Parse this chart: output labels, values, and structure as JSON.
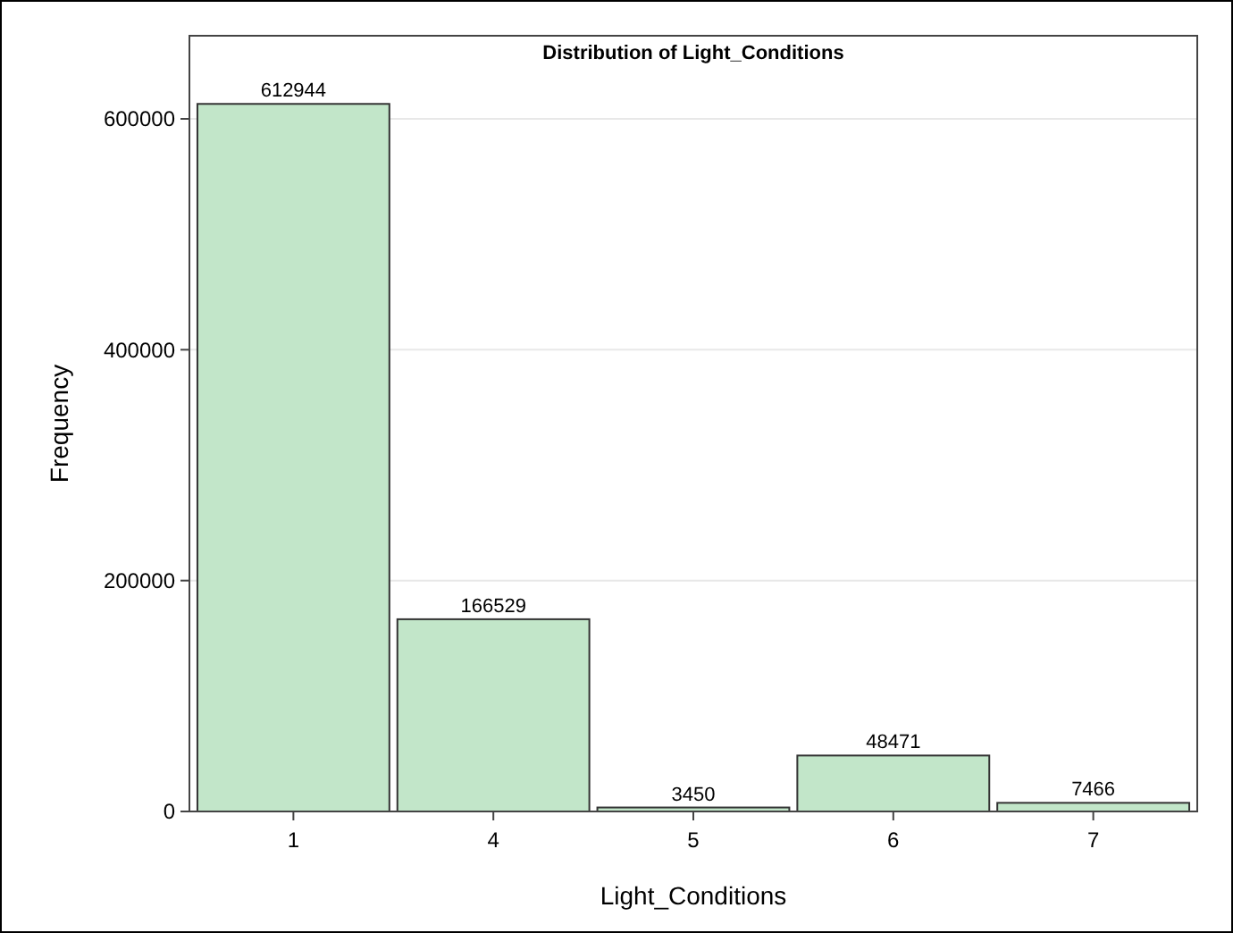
{
  "chart_data": {
    "type": "bar",
    "title": "Distribution of Light_Conditions",
    "xlabel": "Light_Conditions",
    "ylabel": "Frequency",
    "categories": [
      "1",
      "4",
      "5",
      "6",
      "7"
    ],
    "values": [
      612944,
      166529,
      3450,
      48471,
      7466
    ],
    "color": "#c2e6c9",
    "ylim": [
      0,
      672000
    ],
    "yticks": [
      0,
      200000,
      400000,
      600000
    ],
    "grid": "y",
    "data_labels": true
  }
}
